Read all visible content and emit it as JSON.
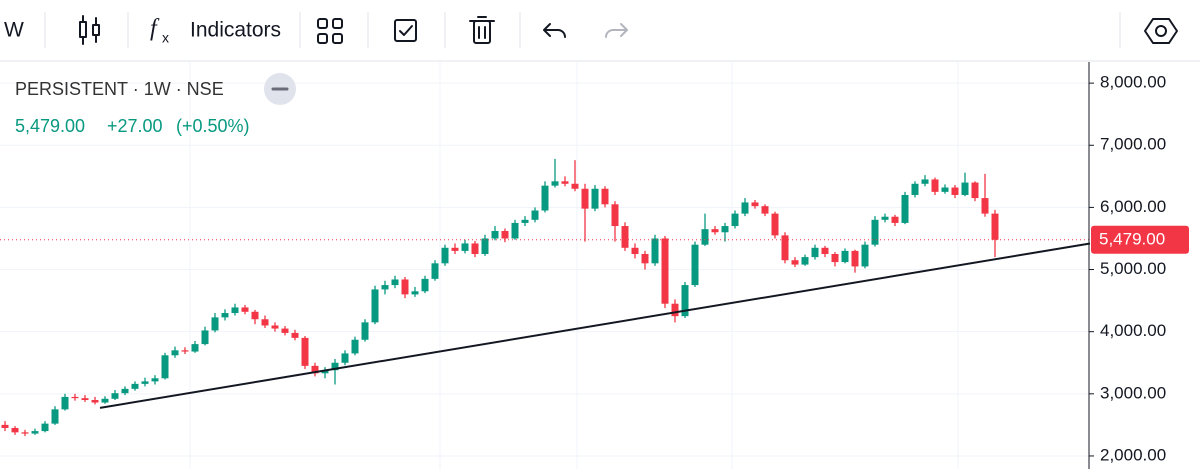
{
  "toolbar": {
    "interval": "W",
    "indicators": "Indicators"
  },
  "chart_data": {
    "type": "candlestick",
    "title": "PERSISTENT · 1W · NSE",
    "quote": {
      "last": "5,479.00",
      "change": "+27.00",
      "change_pct": "(+0.50%)"
    },
    "up_color": "#089981",
    "down_color": "#f23645",
    "ylim": [
      1790,
      8340
    ],
    "yticks": [
      {
        "value": 2000,
        "label": "2,000.00"
      },
      {
        "value": 3000,
        "label": "3,000.00"
      },
      {
        "value": 4000,
        "label": "4,000.00"
      },
      {
        "value": 5000,
        "label": "5,000.00"
      },
      {
        "value": 6000,
        "label": "6,000.00"
      },
      {
        "value": 7000,
        "label": "7,000.00"
      },
      {
        "value": 8000,
        "label": "8,000.00"
      }
    ],
    "last_price": {
      "value": 5479,
      "label": "5,479.00"
    },
    "trendline": {
      "from": [
        9.5,
        2774
      ],
      "to": [
        108.5,
        5419
      ]
    },
    "values": [
      [
        2500,
        2560,
        2400,
        2450
      ],
      [
        2450,
        2480,
        2340,
        2380
      ],
      [
        2380,
        2420,
        2320,
        2360
      ],
      [
        2360,
        2440,
        2340,
        2400
      ],
      [
        2400,
        2560,
        2380,
        2520
      ],
      [
        2520,
        2800,
        2500,
        2750
      ],
      [
        2750,
        3000,
        2730,
        2950
      ],
      [
        2950,
        3000,
        2890,
        2930
      ],
      [
        2930,
        2980,
        2870,
        2900
      ],
      [
        2900,
        2950,
        2830,
        2860
      ],
      [
        2860,
        2960,
        2840,
        2920
      ],
      [
        2920,
        3060,
        2900,
        3010
      ],
      [
        3010,
        3120,
        2980,
        3080
      ],
      [
        3080,
        3200,
        3050,
        3160
      ],
      [
        3160,
        3260,
        3120,
        3200
      ],
      [
        3200,
        3300,
        3150,
        3250
      ],
      [
        3250,
        3660,
        3230,
        3620
      ],
      [
        3620,
        3760,
        3580,
        3700
      ],
      [
        3700,
        3750,
        3640,
        3680
      ],
      [
        3680,
        3850,
        3660,
        3800
      ],
      [
        3800,
        4080,
        3780,
        4020
      ],
      [
        4020,
        4300,
        3990,
        4230
      ],
      [
        4230,
        4360,
        4180,
        4300
      ],
      [
        4300,
        4450,
        4260,
        4390
      ],
      [
        4390,
        4430,
        4280,
        4320
      ],
      [
        4320,
        4350,
        4120,
        4200
      ],
      [
        4200,
        4260,
        4060,
        4100
      ],
      [
        4100,
        4150,
        4000,
        4050
      ],
      [
        4050,
        4090,
        3940,
        3980
      ],
      [
        3980,
        4030,
        3860,
        3900
      ],
      [
        3900,
        3930,
        3400,
        3450
      ],
      [
        3450,
        3500,
        3280,
        3330
      ],
      [
        3330,
        3430,
        3250,
        3380
      ],
      [
        3380,
        3560,
        3150,
        3500
      ],
      [
        3500,
        3700,
        3460,
        3650
      ],
      [
        3650,
        3920,
        3620,
        3870
      ],
      [
        3870,
        4200,
        3840,
        4150
      ],
      [
        4150,
        4740,
        4120,
        4680
      ],
      [
        4680,
        4820,
        4600,
        4750
      ],
      [
        4750,
        4900,
        4700,
        4840
      ],
      [
        4840,
        4880,
        4540,
        4600
      ],
      [
        4600,
        4720,
        4560,
        4650
      ],
      [
        4650,
        4900,
        4620,
        4850
      ],
      [
        4850,
        5150,
        4820,
        5100
      ],
      [
        5100,
        5400,
        5060,
        5350
      ],
      [
        5350,
        5420,
        5250,
        5300
      ],
      [
        5300,
        5480,
        5260,
        5420
      ],
      [
        5420,
        5460,
        5200,
        5250
      ],
      [
        5250,
        5560,
        5220,
        5500
      ],
      [
        5500,
        5700,
        5470,
        5620
      ],
      [
        5620,
        5660,
        5440,
        5500
      ],
      [
        5500,
        5800,
        5480,
        5750
      ],
      [
        5750,
        5860,
        5700,
        5800
      ],
      [
        5800,
        6000,
        5760,
        5950
      ],
      [
        5950,
        6420,
        5920,
        6350
      ],
      [
        6350,
        6780,
        6320,
        6420
      ],
      [
        6420,
        6500,
        6340,
        6380
      ],
      [
        6380,
        6760,
        6260,
        6300
      ],
      [
        6300,
        6380,
        5450,
        5980
      ],
      [
        5980,
        6360,
        5940,
        6300
      ],
      [
        6300,
        6340,
        6000,
        6050
      ],
      [
        6050,
        6100,
        5450,
        5700
      ],
      [
        5700,
        5760,
        5300,
        5350
      ],
      [
        5350,
        5420,
        5180,
        5250
      ],
      [
        5250,
        5300,
        5000,
        5100
      ],
      [
        5100,
        5560,
        5060,
        5500
      ],
      [
        5500,
        5540,
        4380,
        4450
      ],
      [
        4450,
        4520,
        4150,
        4250
      ],
      [
        4250,
        4800,
        4220,
        4750
      ],
      [
        4750,
        5450,
        4720,
        5400
      ],
      [
        5400,
        5900,
        5380,
        5650
      ],
      [
        5650,
        5700,
        5560,
        5600
      ],
      [
        5600,
        5750,
        5450,
        5700
      ],
      [
        5700,
        5950,
        5660,
        5900
      ],
      [
        5900,
        6150,
        5860,
        6080
      ],
      [
        6080,
        6120,
        5980,
        6020
      ],
      [
        6020,
        6050,
        5860,
        5900
      ],
      [
        5900,
        5930,
        5500,
        5550
      ],
      [
        5550,
        5600,
        5100,
        5150
      ],
      [
        5150,
        5200,
        5040,
        5080
      ],
      [
        5080,
        5240,
        5060,
        5200
      ],
      [
        5200,
        5400,
        5160,
        5350
      ],
      [
        5350,
        5380,
        5200,
        5250
      ],
      [
        5250,
        5280,
        5050,
        5120
      ],
      [
        5120,
        5340,
        5100,
        5300
      ],
      [
        5300,
        5320,
        4950,
        5050
      ],
      [
        5050,
        5450,
        5020,
        5400
      ],
      [
        5400,
        5860,
        5370,
        5800
      ],
      [
        5800,
        5900,
        5760,
        5850
      ],
      [
        5850,
        5880,
        5700,
        5750
      ],
      [
        5750,
        6250,
        5730,
        6200
      ],
      [
        6200,
        6420,
        6160,
        6380
      ],
      [
        6380,
        6520,
        6340,
        6450
      ],
      [
        6450,
        6480,
        6200,
        6250
      ],
      [
        6250,
        6370,
        6220,
        6320
      ],
      [
        6320,
        6360,
        6150,
        6200
      ],
      [
        6200,
        6560,
        6180,
        6400
      ],
      [
        6400,
        6420,
        6100,
        6150
      ],
      [
        6150,
        6540,
        5850,
        5900
      ],
      [
        5900,
        5960,
        5200,
        5479
      ]
    ]
  }
}
